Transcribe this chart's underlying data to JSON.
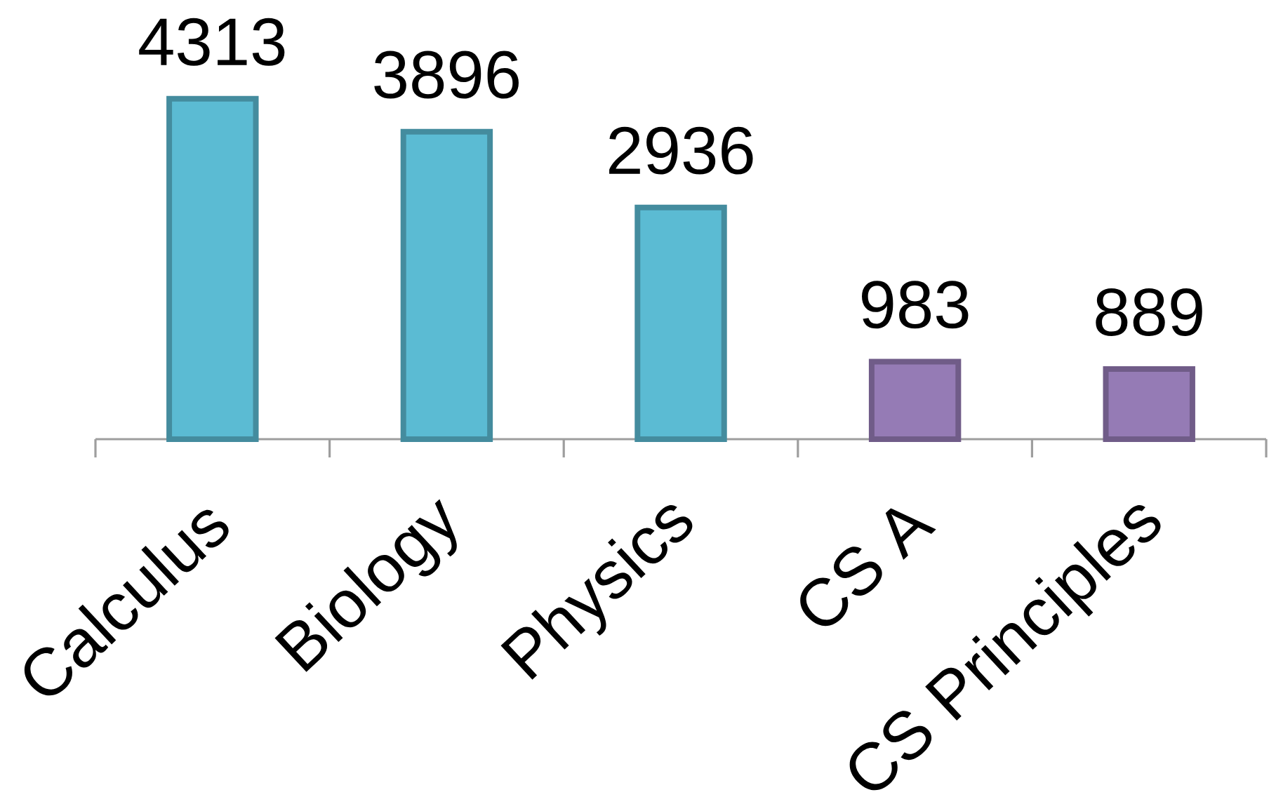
{
  "chart_data": {
    "type": "bar",
    "categories": [
      "Calculus",
      "Biology",
      "Physics",
      "CS A",
      "CS Principles"
    ],
    "values": [
      4313,
      3896,
      2936,
      983,
      889
    ],
    "colors": [
      "#5bbbd3",
      "#5bbbd3",
      "#5bbbd3",
      "#957bb5",
      "#957bb5"
    ],
    "data_labels": true,
    "tick_labels": "x"
  }
}
